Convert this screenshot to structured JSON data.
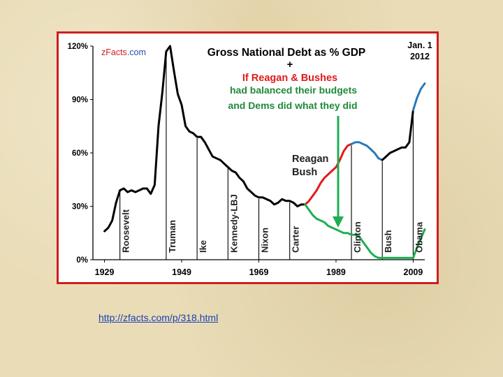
{
  "chart_data": {
    "type": "line",
    "brand_left": "z",
    "brand_mid": "Facts",
    "brand_right": ".com",
    "title": "Gross National Debt  as % GDP",
    "subtitle_plus": "+",
    "subtitle_line1": "If Reagan & Bushes",
    "subtitle_line2": "had balanced their budgets",
    "subtitle_line3": "and Dems did what they did",
    "date_line1": "Jan. 1",
    "date_line2": "2012",
    "reagan_bush_line1": "Reagan",
    "reagan_bush_line2": "Bush",
    "x_ticks": [
      "1929",
      "1949",
      "1969",
      "1989",
      "2009"
    ],
    "x_tick_values": [
      1929,
      1949,
      1969,
      1989,
      2009
    ],
    "y_ticks": [
      "0%",
      "30%",
      "60%",
      "90%",
      "120%"
    ],
    "y_tick_values": [
      0,
      30,
      60,
      90,
      120
    ],
    "xlim": [
      1926,
      2012
    ],
    "ylim": [
      0,
      120
    ],
    "colors": {
      "actual": "#000000",
      "reagan_bush": "#e01b1b",
      "clinton": "#2a79b8",
      "obama": "#2a79b8",
      "counterfactual": "#1fae52",
      "arrow": "#1fae52",
      "title": "#000000",
      "subtitle": "#1f8a3a",
      "subtitle_plus": "#000000",
      "if_line": "#e01b1b",
      "brand_z": "#cc1f1f",
      "brand_com": "#1f4fb5"
    },
    "presidents": [
      {
        "name": "Roosevelt",
        "year": 1933
      },
      {
        "name": "Truman",
        "year": 1945
      },
      {
        "name": "Ike",
        "year": 1953
      },
      {
        "name": "Kennedy-LBJ",
        "year": 1961
      },
      {
        "name": "Nixon",
        "year": 1969
      },
      {
        "name": "Carter",
        "year": 1977
      },
      {
        "name": "Clinton",
        "year": 1993
      },
      {
        "name": "Bush",
        "year": 2001
      },
      {
        "name": "Obama",
        "year": 2009
      }
    ],
    "series": [
      {
        "key": "actual",
        "x": [
          1929,
          1930,
          1931,
          1932,
          1933,
          1934,
          1935,
          1936,
          1937,
          1938,
          1939,
          1940,
          1941,
          1942,
          1943,
          1944,
          1945,
          1946,
          1947,
          1948,
          1949,
          1950,
          1951,
          1952,
          1953,
          1954,
          1955,
          1956,
          1957,
          1958,
          1959,
          1960,
          1961,
          1962,
          1963,
          1964,
          1965,
          1966,
          1967,
          1968,
          1969,
          1970,
          1971,
          1972,
          1973,
          1974,
          1975,
          1976,
          1977,
          1978,
          1979,
          1980,
          1981
        ],
        "values": [
          16,
          18,
          22,
          32,
          39,
          40,
          38,
          39,
          38,
          39,
          40,
          40,
          37,
          42,
          75,
          94,
          117,
          120,
          106,
          93,
          87,
          75,
          72,
          71,
          69,
          69,
          66,
          62,
          58,
          57,
          56,
          54,
          52,
          50,
          49,
          46,
          44,
          40,
          38,
          36,
          35,
          35,
          34,
          33,
          31,
          32,
          34,
          33,
          33,
          32,
          30,
          31,
          31
        ]
      },
      {
        "key": "reagan_bush",
        "x": [
          1981,
          1982,
          1983,
          1984,
          1985,
          1986,
          1987,
          1988,
          1989,
          1990,
          1991,
          1992,
          1993
        ],
        "values": [
          31,
          33,
          36,
          39,
          43,
          46,
          48,
          50,
          52,
          56,
          61,
          64,
          65
        ]
      },
      {
        "key": "clinton",
        "x": [
          1993,
          1994,
          1995,
          1996,
          1997,
          1998,
          1999,
          2000,
          2001
        ],
        "values": [
          65,
          66,
          66,
          65,
          64,
          62,
          60,
          57,
          56
        ]
      },
      {
        "key": "bush",
        "x": [
          2001,
          2002,
          2003,
          2004,
          2005,
          2006,
          2007,
          2008,
          2009
        ],
        "values": [
          56,
          58,
          60,
          61,
          62,
          63,
          63,
          66,
          84
        ]
      },
      {
        "key": "obama",
        "x": [
          2009,
          2010,
          2011,
          2012
        ],
        "values": [
          84,
          91,
          96,
          99
        ]
      },
      {
        "key": "counterfactual",
        "x": [
          1981,
          1982,
          1983,
          1984,
          1985,
          1986,
          1987,
          1988,
          1989,
          1990,
          1991,
          1992,
          1993,
          1994,
          1995,
          1996,
          1997,
          1998,
          1999,
          2000,
          2001,
          2002,
          2003,
          2004,
          2005,
          2006,
          2007,
          2008,
          2009,
          2010,
          2011,
          2012
        ],
        "values": [
          31,
          28,
          25,
          23,
          22,
          21,
          19,
          18,
          17,
          16,
          15,
          15,
          14,
          14,
          13,
          10,
          7,
          4,
          2,
          1,
          1,
          1,
          1,
          1,
          1,
          1,
          1,
          1,
          1,
          7,
          12,
          17
        ]
      }
    ]
  },
  "footer": {
    "link_text": "http://zfacts.com/p/318.html"
  }
}
